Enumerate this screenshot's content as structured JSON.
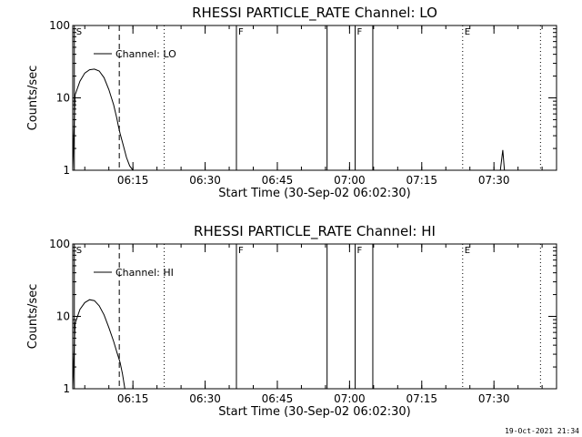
{
  "footer": {
    "timestamp": "19-Oct-2021 21:34"
  },
  "chart_data": [
    {
      "type": "line",
      "title": "RHESSI PARTICLE_RATE Channel: LO",
      "xlabel": "Start Time (30-Sep-02 06:02:30)",
      "ylabel": "Counts/sec",
      "ylog": true,
      "ylim": [
        1,
        100
      ],
      "xlim": [
        "06:02:30",
        "07:43:00"
      ],
      "ytick_labels": [
        "1",
        "10",
        "100"
      ],
      "xtick_labels": [
        "06:15",
        "06:30",
        "06:45",
        "07:00",
        "07:15",
        "07:30"
      ],
      "legend": {
        "label": "Channel: LO",
        "placement": "top-left"
      },
      "series": [
        {
          "name": "Channel: LO",
          "points": [
            [
              "06:02:30",
              1.0
            ],
            [
              "06:03:00",
              11.0
            ],
            [
              "06:04:00",
              17.0
            ],
            [
              "06:05:00",
              22.0
            ],
            [
              "06:06:00",
              24.5
            ],
            [
              "06:07:00",
              25.0
            ],
            [
              "06:08:00",
              23.5
            ],
            [
              "06:09:00",
              19.0
            ],
            [
              "06:10:00",
              13.0
            ],
            [
              "06:11:00",
              8.0
            ],
            [
              "06:11:40",
              5.2
            ],
            [
              "06:12:00",
              4.0
            ],
            [
              "06:12:20",
              3.2
            ],
            [
              "06:13:00",
              2.2
            ],
            [
              "06:13:40",
              1.5
            ],
            [
              "06:14:20",
              1.15
            ],
            [
              "06:15:00",
              1.0
            ],
            [
              "07:31:20",
              1.0
            ],
            [
              "07:31:50",
              1.9
            ],
            [
              "07:32:10",
              1.0
            ]
          ]
        }
      ],
      "markers": [
        {
          "time": "06:02:50",
          "style": "solid",
          "flag": "S"
        },
        {
          "time": "06:12:10",
          "style": "dashed",
          "flag": ""
        },
        {
          "time": "06:21:30",
          "style": "dotted",
          "flag": ""
        },
        {
          "time": "06:36:30",
          "style": "solid",
          "flag": "F"
        },
        {
          "time": "06:55:20",
          "style": "solid",
          "flag": ""
        },
        {
          "time": "07:01:10",
          "style": "solid",
          "flag": "F"
        },
        {
          "time": "07:04:50",
          "style": "solid",
          "flag": ""
        },
        {
          "time": "07:23:30",
          "style": "dotted",
          "flag": "E"
        },
        {
          "time": "07:39:40",
          "style": "dotted",
          "flag": ""
        }
      ]
    },
    {
      "type": "line",
      "title": "RHESSI PARTICLE_RATE Channel: HI",
      "xlabel": "Start Time (30-Sep-02 06:02:30)",
      "ylabel": "Counts/sec",
      "ylog": true,
      "ylim": [
        1,
        100
      ],
      "xlim": [
        "06:02:30",
        "07:43:00"
      ],
      "ytick_labels": [
        "1",
        "10",
        "100"
      ],
      "xtick_labels": [
        "06:15",
        "06:30",
        "06:45",
        "07:00",
        "07:15",
        "07:30"
      ],
      "legend": {
        "label": "Channel: HI",
        "placement": "top-left"
      },
      "series": [
        {
          "name": "Channel: HI",
          "points": [
            [
              "06:02:30",
              1.0
            ],
            [
              "06:03:00",
              8.0
            ],
            [
              "06:04:00",
              12.5
            ],
            [
              "06:05:00",
              15.5
            ],
            [
              "06:06:00",
              17.0
            ],
            [
              "06:07:00",
              16.5
            ],
            [
              "06:08:00",
              14.0
            ],
            [
              "06:09:00",
              10.5
            ],
            [
              "06:10:00",
              7.0
            ],
            [
              "06:11:00",
              4.5
            ],
            [
              "06:11:40",
              3.2
            ],
            [
              "06:12:20",
              2.3
            ],
            [
              "06:12:50",
              1.6
            ],
            [
              "06:13:20",
              1.0
            ]
          ]
        }
      ],
      "markers": [
        {
          "time": "06:02:50",
          "style": "solid",
          "flag": "S"
        },
        {
          "time": "06:12:10",
          "style": "dashed",
          "flag": ""
        },
        {
          "time": "06:21:30",
          "style": "dotted",
          "flag": ""
        },
        {
          "time": "06:36:30",
          "style": "solid",
          "flag": "F"
        },
        {
          "time": "06:55:20",
          "style": "solid",
          "flag": ""
        },
        {
          "time": "07:01:10",
          "style": "solid",
          "flag": "F"
        },
        {
          "time": "07:04:50",
          "style": "solid",
          "flag": ""
        },
        {
          "time": "07:23:30",
          "style": "dotted",
          "flag": "E"
        },
        {
          "time": "07:39:40",
          "style": "dotted",
          "flag": ""
        }
      ]
    }
  ]
}
